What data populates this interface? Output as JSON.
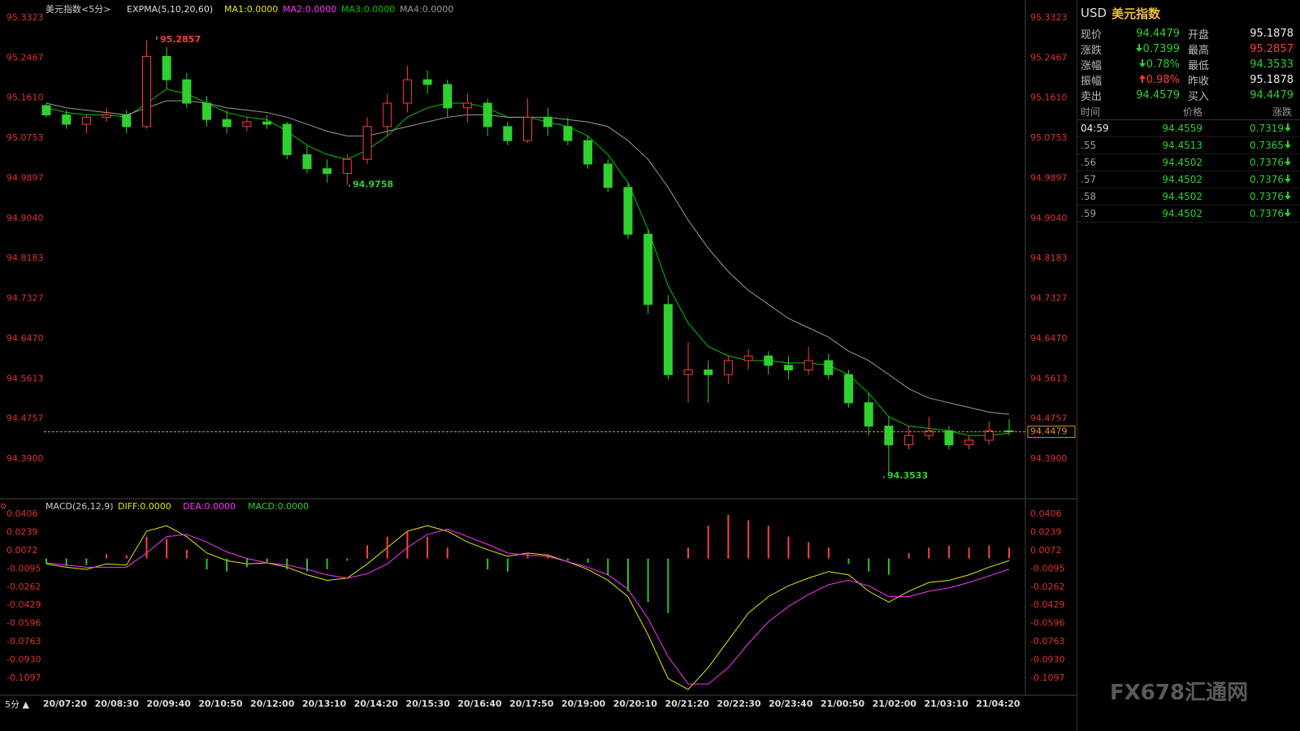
{
  "chart_data": [
    {
      "type": "candlestick",
      "title": "美元指数<5分>",
      "indicator": "EXPMA(5,10,20,60)",
      "legend": [
        {
          "name": "MA1:0.0000",
          "color": "#e6e600"
        },
        {
          "name": "MA2:0.0000",
          "color": "#ff33ff"
        }
      ],
      "up_color": "#ff3b3b",
      "down_color": "#2fd02f",
      "open": [
        95.145,
        95.125,
        95.105,
        95.12,
        95.125,
        95.1,
        95.25,
        95.2,
        95.15,
        95.115,
        95.1,
        95.11,
        95.105,
        95.04,
        95.01,
        95.0,
        95.03,
        95.1,
        95.15,
        95.2,
        95.19,
        95.14,
        95.15,
        95.1,
        95.07,
        95.12,
        95.1,
        95.07,
        95.02,
        94.97,
        94.87,
        94.72,
        94.57,
        94.58,
        94.57,
        94.6,
        94.61,
        94.59,
        94.58,
        94.6,
        94.57,
        94.51,
        94.46,
        94.42,
        94.44,
        94.45,
        94.42,
        94.43,
        94.45
      ],
      "high": [
        95.15,
        95.135,
        95.125,
        95.14,
        95.135,
        95.2857,
        95.27,
        95.215,
        95.165,
        95.135,
        95.12,
        95.125,
        95.11,
        95.06,
        95.03,
        95.04,
        95.12,
        95.17,
        95.23,
        95.22,
        95.2,
        95.17,
        95.16,
        95.11,
        95.16,
        95.14,
        95.12,
        95.08,
        95.03,
        94.98,
        94.88,
        94.74,
        94.64,
        94.6,
        94.61,
        94.625,
        94.62,
        94.61,
        94.63,
        94.615,
        94.58,
        94.53,
        94.48,
        94.46,
        94.48,
        94.46,
        94.44,
        94.47,
        94.475
      ],
      "low": [
        95.12,
        95.095,
        95.085,
        95.11,
        95.085,
        95.095,
        95.18,
        95.14,
        95.1,
        95.085,
        95.09,
        95.095,
        95.03,
        95.0,
        94.98,
        94.9758,
        95.02,
        95.08,
        95.13,
        95.17,
        95.12,
        95.11,
        95.08,
        95.06,
        95.065,
        95.08,
        95.06,
        95.01,
        94.96,
        94.86,
        94.7,
        94.56,
        94.51,
        94.51,
        94.55,
        94.58,
        94.57,
        94.56,
        94.57,
        94.56,
        94.5,
        94.44,
        94.3533,
        94.41,
        94.43,
        94.41,
        94.41,
        94.42,
        94.44
      ],
      "close": [
        95.125,
        95.105,
        95.12,
        95.125,
        95.1,
        95.25,
        95.2,
        95.15,
        95.115,
        95.1,
        95.11,
        95.105,
        95.04,
        95.01,
        95.0,
        95.03,
        95.1,
        95.15,
        95.2,
        95.19,
        95.14,
        95.15,
        95.1,
        95.07,
        95.12,
        95.1,
        95.07,
        95.02,
        94.97,
        94.87,
        94.72,
        94.57,
        94.58,
        94.57,
        94.6,
        94.61,
        94.59,
        94.58,
        94.6,
        94.57,
        94.51,
        94.46,
        94.42,
        94.44,
        94.45,
        94.42,
        94.43,
        94.45,
        94.448
      ],
      "series": [
        {
          "name": "MA3:0.0000",
          "color": "#00c800",
          "values": [
            95.14,
            95.13,
            95.125,
            95.125,
            95.12,
            95.15,
            95.18,
            95.17,
            95.15,
            95.13,
            95.12,
            95.115,
            95.09,
            95.06,
            95.04,
            95.03,
            95.05,
            95.08,
            95.12,
            95.14,
            95.15,
            95.15,
            95.14,
            95.12,
            95.12,
            95.11,
            95.1,
            95.08,
            95.04,
            94.98,
            94.88,
            94.76,
            94.68,
            94.63,
            94.61,
            94.6,
            94.6,
            94.595,
            94.595,
            94.59,
            94.57,
            94.53,
            94.48,
            94.46,
            94.455,
            94.45,
            94.44,
            94.44,
            94.445
          ]
        },
        {
          "name": "MA4:0.0000",
          "color": "#9a9a9a",
          "values": [
            95.15,
            95.14,
            95.135,
            95.13,
            95.125,
            95.14,
            95.155,
            95.155,
            95.15,
            95.14,
            95.135,
            95.13,
            95.12,
            95.105,
            95.09,
            95.08,
            95.08,
            95.09,
            95.1,
            95.11,
            95.12,
            95.125,
            95.125,
            95.12,
            95.12,
            95.12,
            95.115,
            95.11,
            95.1,
            95.07,
            95.03,
            94.97,
            94.9,
            94.84,
            94.79,
            94.75,
            94.72,
            94.69,
            94.67,
            94.65,
            94.62,
            94.6,
            94.57,
            94.54,
            94.52,
            94.51,
            94.5,
            94.49,
            94.485
          ]
        }
      ],
      "annotations": [
        95.2857,
        94.9758,
        94.3533
      ],
      "last_price": 94.4479,
      "ylim": [
        94.3119,
        95.3444
      ],
      "yticks": [
        95.3323,
        95.2467,
        {
          "value": 95.161,
          "label": "95.1610"
        },
        95.0753,
        94.9897,
        {
          "value": 94.904,
          "label": "94.9040"
        },
        94.8183,
        94.7327,
        {
          "value": 94.647,
          "label": "94.6470"
        },
        94.5613,
        94.4757,
        {
          "value": 94.39,
          "label": "94.3900"
        }
      ],
      "x_labels": [
        "20/07:20",
        "20/08:30",
        "20/09:40",
        "20/10:50",
        "20/12:00",
        "20/13:10",
        "20/14:20",
        "20/15:30",
        "20/16:40",
        "20/17:50",
        "20/19:00",
        "20/20:10",
        "20/21:20",
        "20/22:30",
        "20/23:40",
        "21/00:50",
        "21/02:00",
        "21/03:10",
        "21/04:20"
      ]
    },
    {
      "type": "macd",
      "title": "MACD(26,12,9)",
      "series": [
        {
          "name": "DIFF:0.0000",
          "color": "#e6e600",
          "values": [
            -0.005,
            -0.008,
            -0.01,
            -0.005,
            -0.006,
            0.025,
            0.03,
            0.02,
            0.005,
            -0.002,
            -0.005,
            -0.004,
            -0.008,
            -0.015,
            -0.02,
            -0.018,
            -0.005,
            0.01,
            0.025,
            0.03,
            0.025,
            0.015,
            0.008,
            0.002,
            0.005,
            0.003,
            -0.003,
            -0.01,
            -0.02,
            -0.035,
            -0.07,
            -0.11,
            -0.12,
            -0.1,
            -0.075,
            -0.05,
            -0.035,
            -0.025,
            -0.018,
            -0.012,
            -0.015,
            -0.03,
            -0.04,
            -0.03,
            -0.022,
            -0.02,
            -0.015,
            -0.008,
            -0.002
          ]
        },
        {
          "name": "DEA:0.0000",
          "color": "#ff33ff",
          "values": [
            -0.004,
            -0.006,
            -0.008,
            -0.008,
            -0.008,
            0.005,
            0.02,
            0.022,
            0.015,
            0.006,
            0.0,
            -0.004,
            -0.006,
            -0.01,
            -0.015,
            -0.018,
            -0.014,
            -0.005,
            0.01,
            0.022,
            0.027,
            0.02,
            0.013,
            0.005,
            0.003,
            0.002,
            -0.003,
            -0.008,
            -0.015,
            -0.028,
            -0.055,
            -0.09,
            -0.115,
            -0.115,
            -0.1,
            -0.078,
            -0.058,
            -0.044,
            -0.033,
            -0.024,
            -0.02,
            -0.025,
            -0.035,
            -0.035,
            -0.03,
            -0.027,
            -0.022,
            -0.016,
            -0.01
          ]
        },
        {
          "name": "MACD:0.0000",
          "color": "#ff4040",
          "down_color": "#30c030",
          "style": "bar",
          "values": [
            -0.005,
            -0.007,
            -0.006,
            0.004,
            0.003,
            0.02,
            0.018,
            0.008,
            -0.01,
            -0.012,
            -0.008,
            -0.004,
            -0.01,
            -0.012,
            -0.01,
            -0.002,
            0.012,
            0.02,
            0.025,
            0.02,
            0.01,
            0.0,
            -0.01,
            -0.012,
            0.005,
            0.004,
            -0.002,
            -0.004,
            -0.015,
            -0.03,
            -0.04,
            -0.05,
            0.01,
            0.03,
            0.04,
            0.035,
            0.03,
            0.02,
            0.015,
            0.01,
            -0.005,
            -0.012,
            -0.015,
            0.005,
            0.01,
            0.012,
            0.01,
            0.012,
            0.01
          ]
        }
      ],
      "ylim": [
        -0.1246,
        0.0503
      ],
      "yticks": [
        0.0406,
        0.0239,
        0.0072,
        -0.0095,
        -0.0262,
        -0.0429,
        -0.0596,
        -0.0763,
        {
          "value": -0.093,
          "label": "-0.0930"
        },
        -0.1097
      ]
    }
  ],
  "panel": {
    "currency": "USD",
    "name": "美元指数",
    "quote": [
      [
        "现价",
        "94.4479",
        "开盘",
        "95.1878"
      ],
      [
        "涨跌",
        "0.7399",
        "最高",
        "95.2857"
      ],
      [
        "涨幅",
        "0.78%",
        "最低",
        "94.3533"
      ],
      [
        "振幅",
        "0.98%",
        "昨收",
        "95.1878"
      ],
      [
        "卖出",
        "94.4579",
        "买入",
        "94.4479"
      ]
    ],
    "ticks_header": [
      "时间",
      "价格",
      "涨跌"
    ],
    "ticks": [
      [
        "04:59",
        "94.4559",
        "0.7319"
      ],
      [
        ".55",
        "94.4513",
        "0.7365"
      ],
      [
        ".56",
        "94.4502",
        "0.7376"
      ],
      [
        ".57",
        "94.4502",
        "0.7376"
      ],
      [
        ".58",
        "94.4502",
        "0.7376"
      ],
      [
        ".59",
        "94.4502",
        "0.7376"
      ]
    ]
  },
  "footer": {
    "period": "5分 ▲",
    "watermark": "FX678汇通网"
  }
}
